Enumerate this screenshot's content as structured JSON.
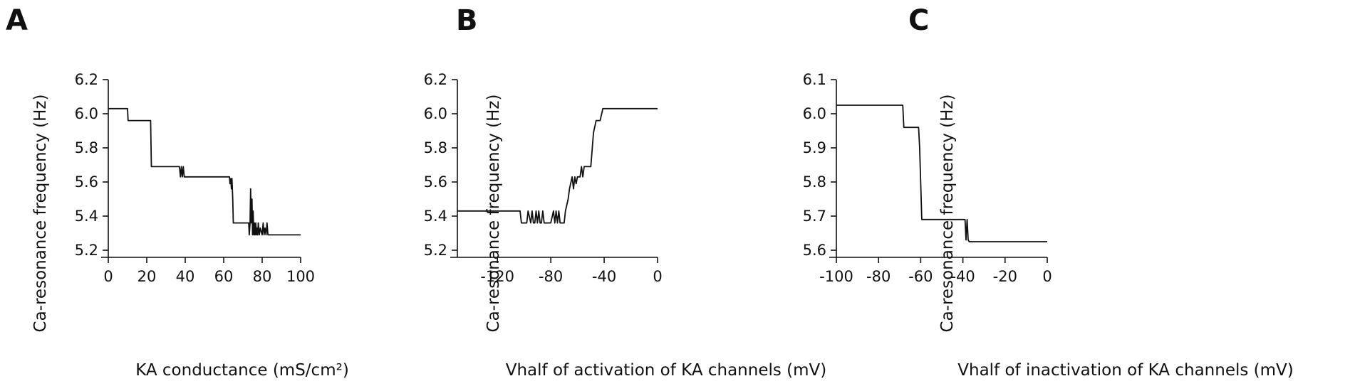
{
  "chart_data": [
    {
      "panel": "A",
      "type": "line",
      "xlabel": "KA conductance (mS/cm²)",
      "ylabel": "Ca-resonance frequency (Hz)",
      "xlim": [
        0,
        100
      ],
      "ylim": [
        5.2,
        6.2
      ],
      "xticks": [
        0,
        20,
        40,
        60,
        80,
        100
      ],
      "xtick_labels": [
        "0",
        "20",
        "40",
        "60",
        "80",
        "100"
      ],
      "yticks": [
        5.2,
        5.4,
        5.6,
        5.8,
        6.0,
        6.2
      ],
      "ytick_labels": [
        "5.2",
        "5.4",
        "5.6",
        "5.8",
        "6.0",
        "6.2"
      ],
      "series": [
        {
          "x": [
            0,
            10,
            10.3,
            22,
            22.4,
            37,
            37.5,
            38,
            38.5,
            39,
            39.5,
            40,
            63,
            63.3,
            63.7,
            64,
            64.3,
            64.7,
            65,
            73,
            73.3,
            73.7,
            74,
            74.3,
            74.7,
            75,
            75.3,
            75.7,
            76,
            76.3,
            76.7,
            77,
            77.3,
            77.7,
            78,
            78.5,
            79,
            80,
            80.5,
            81,
            81.5,
            82,
            82.5,
            83,
            100
          ],
          "y": [
            6.03,
            6.03,
            5.96,
            5.96,
            5.69,
            5.69,
            5.63,
            5.69,
            5.63,
            5.69,
            5.63,
            5.63,
            5.63,
            5.59,
            5.62,
            5.56,
            5.62,
            5.5,
            5.36,
            5.36,
            5.29,
            5.36,
            5.56,
            5.36,
            5.5,
            5.29,
            5.43,
            5.29,
            5.36,
            5.29,
            5.36,
            5.29,
            5.33,
            5.29,
            5.36,
            5.29,
            5.33,
            5.29,
            5.36,
            5.29,
            5.33,
            5.29,
            5.36,
            5.29,
            5.29
          ]
        }
      ]
    },
    {
      "panel": "B",
      "type": "line",
      "xlabel": "Vhalf of activation of KA channels (mV)",
      "ylabel": "Ca-resonance frequency (Hz)",
      "xlim": [
        -150,
        0
      ],
      "ylim": [
        5.2,
        6.2
      ],
      "xticks": [
        -120,
        -80,
        -40,
        0
      ],
      "xtick_labels": [
        "-120",
        "-80",
        "-40",
        "0"
      ],
      "yticks": [
        5.2,
        5.4,
        5.6,
        5.8,
        6.0,
        6.2
      ],
      "ytick_labels": [
        "5.2",
        "5.4",
        "5.6",
        "5.8",
        "6.0",
        "6.2"
      ],
      "series": [
        {
          "x": [
            -150,
            -103,
            -102,
            -98,
            -97,
            -95,
            -94,
            -93,
            -92,
            -91,
            -90,
            -89,
            -88,
            -87,
            -86,
            -85,
            -84,
            -80,
            -78,
            -77,
            -76,
            -75,
            -74,
            -73,
            -72,
            -71,
            -70,
            -69,
            -67,
            -66,
            -64,
            -63,
            -62,
            -61,
            -60,
            -59,
            -58,
            -57,
            -56,
            -55,
            -54,
            -53,
            -52,
            -50,
            -48,
            -46,
            -45,
            -43,
            -41,
            -40,
            0
          ],
          "y": [
            5.43,
            5.43,
            5.36,
            5.36,
            5.43,
            5.36,
            5.43,
            5.36,
            5.36,
            5.43,
            5.36,
            5.43,
            5.36,
            5.36,
            5.43,
            5.36,
            5.36,
            5.36,
            5.43,
            5.36,
            5.43,
            5.36,
            5.43,
            5.36,
            5.36,
            5.36,
            5.36,
            5.43,
            5.5,
            5.56,
            5.63,
            5.56,
            5.63,
            5.59,
            5.63,
            5.63,
            5.63,
            5.69,
            5.63,
            5.69,
            5.69,
            5.69,
            5.69,
            5.69,
            5.89,
            5.96,
            5.96,
            5.96,
            6.03,
            6.03,
            6.03
          ]
        }
      ]
    },
    {
      "panel": "C",
      "type": "line",
      "xlabel": "Vhalf of inactivation of KA channels (mV)",
      "ylabel": "Ca-resonance frequency (Hz)",
      "xlim": [
        -100,
        0
      ],
      "ylim": [
        5.6,
        6.1
      ],
      "xticks": [
        -100,
        -80,
        -60,
        -40,
        -20,
        0
      ],
      "xtick_labels": [
        "-100",
        "-80",
        "-60",
        "-40",
        "-20",
        "0"
      ],
      "yticks": [
        5.6,
        5.7,
        5.8,
        5.9,
        6.0,
        6.1
      ],
      "ytick_labels": [
        "5.6",
        "5.7",
        "5.8",
        "5.9",
        "6.0",
        "6.1"
      ],
      "series": [
        {
          "x": [
            -100,
            -68.5,
            -68,
            -61,
            -60.5,
            -59.5,
            -39,
            -38.5,
            -38,
            -37.5,
            -37,
            -36.5,
            0
          ],
          "y": [
            6.025,
            6.025,
            5.96,
            5.96,
            5.9,
            5.69,
            5.69,
            5.63,
            5.69,
            5.63,
            5.625,
            5.625,
            5.625
          ]
        }
      ]
    }
  ]
}
